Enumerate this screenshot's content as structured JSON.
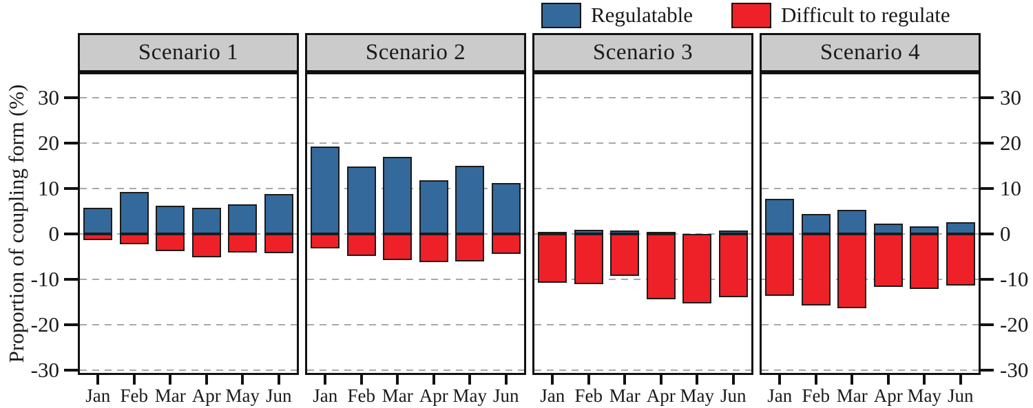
{
  "chart_data": {
    "type": "bar",
    "variant": "diverging-stacked-small-multiples",
    "title": "",
    "ylabel": "Proportion of coupling form (%)",
    "xlabel": "",
    "ylim": [
      -32,
      35
    ],
    "yticks": [
      30,
      20,
      10,
      0,
      -10,
      -20,
      -30
    ],
    "grid": "horizontal dashed at every 10, on",
    "legend_position": "top-right",
    "categories": [
      "Jan",
      "Feb",
      "Mar",
      "Apr",
      "May",
      "Jun"
    ],
    "legend": [
      {
        "label": "Regulatable",
        "color": "#34699B"
      },
      {
        "label": "Difficult to regulate",
        "color": "#EE2128"
      }
    ],
    "panels": [
      {
        "title": "Scenario 1",
        "series": [
          {
            "name": "Regulatable",
            "values": [
              5.8,
              9.3,
              6.2,
              5.8,
              6.5,
              8.8
            ]
          },
          {
            "name": "Difficult to regulate",
            "values": [
              -1.3,
              -2.3,
              -3.8,
              -5.2,
              -4.1,
              -4.2
            ]
          }
        ]
      },
      {
        "title": "Scenario 2",
        "series": [
          {
            "name": "Regulatable",
            "values": [
              19.3,
              14.8,
              16.9,
              11.8,
              15.0,
              11.2
            ]
          },
          {
            "name": "Difficult to regulate",
            "values": [
              -3.2,
              -4.9,
              -5.8,
              -6.2,
              -6.1,
              -4.4
            ]
          }
        ]
      },
      {
        "title": "Scenario 3",
        "series": [
          {
            "name": "Regulatable",
            "values": [
              0.4,
              0.9,
              0.7,
              0.4,
              0.0,
              0.7
            ]
          },
          {
            "name": "Difficult to regulate",
            "values": [
              -10.7,
              -11.1,
              -9.2,
              -14.4,
              -15.3,
              -13.9
            ]
          }
        ]
      },
      {
        "title": "Scenario 4",
        "series": [
          {
            "name": "Regulatable",
            "values": [
              7.7,
              4.4,
              5.3,
              2.3,
              1.7,
              2.6
            ]
          },
          {
            "name": "Difficult to regulate",
            "values": [
              -13.6,
              -15.7,
              -16.3,
              -11.6,
              -12.1,
              -11.4
            ]
          }
        ]
      }
    ],
    "colors": {
      "regulatable": "#34699B",
      "difficult": "#EE2128",
      "bar_outline": "#1B1B1B",
      "panel_header_fill": "#CBCBCB",
      "axis": "#111111",
      "gridline": "#A8A8A8"
    }
  }
}
